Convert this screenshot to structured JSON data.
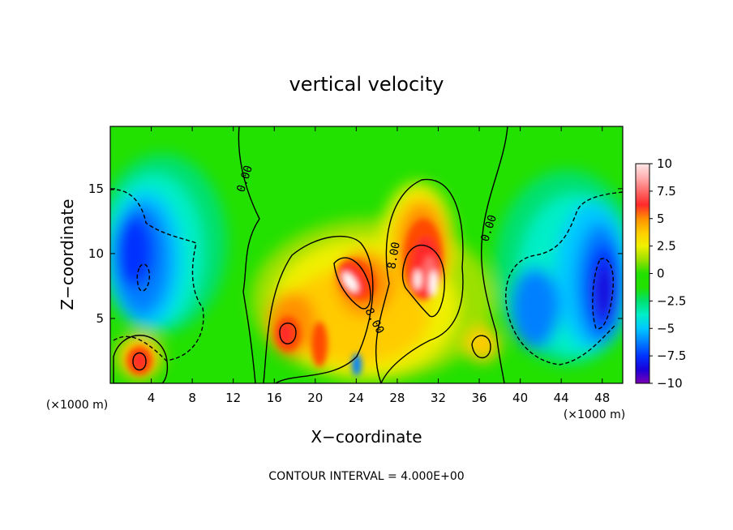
{
  "chart_data": {
    "type": "heatmap",
    "title": "vertical velocity",
    "xlabel": "X−coordinate",
    "ylabel": "Z−coordinate",
    "x_unit_label": "(×1000 m)",
    "x_ticks": [
      "4",
      "8",
      "12",
      "16",
      "20",
      "24",
      "28",
      "32",
      "36",
      "40",
      "44",
      "48"
    ],
    "y_ticks": [
      "5",
      "10",
      "15"
    ],
    "xlim": [
      0,
      50
    ],
    "ylim": [
      0,
      19.8
    ],
    "colorbar": {
      "ticks": [
        "10",
        "7.5",
        "5",
        "2.5",
        "0",
        "−2.5",
        "−5",
        "−7.5",
        "−10"
      ],
      "range": [
        -10,
        10
      ],
      "colors": [
        "#7a00b3",
        "#1a00d9",
        "#0033ff",
        "#0080ff",
        "#00c8ff",
        "#00eec8",
        "#00e070",
        "#22e000",
        "#9be000",
        "#f0f000",
        "#ffcc00",
        "#ff9000",
        "#ff4a00",
        "#ff2a2a",
        "#ff6a6a",
        "#ffb0b0",
        "#ffe8e8"
      ]
    },
    "contour_interval": "CONTOUR INTERVAL = 4.000E+00",
    "contour_labels": [
      "0.00",
      "0.00",
      "8.00",
      "8.00"
    ],
    "features": [
      {
        "kind": "updraft",
        "x": 29.5,
        "z": 8.5,
        "peak": 10
      },
      {
        "kind": "updraft",
        "x": 24.5,
        "z": 8.0,
        "peak": 10
      },
      {
        "kind": "updraft",
        "x": 17.5,
        "z": 4.0,
        "peak": 7
      },
      {
        "kind": "updraft",
        "x": 3.0,
        "z": 1.8,
        "peak": 7
      },
      {
        "kind": "updraft",
        "x": 36.0,
        "z": 3.0,
        "peak": 5
      },
      {
        "kind": "downdraft",
        "x": 4.5,
        "z": 9.5,
        "peak": -6
      },
      {
        "kind": "downdraft",
        "x": 47.0,
        "z": 8.5,
        "peak": -8
      },
      {
        "kind": "downdraft",
        "x": 42.0,
        "z": 6.5,
        "peak": -6
      },
      {
        "kind": "downdraft",
        "x": 24.0,
        "z": 1.5,
        "peak": -5
      }
    ]
  }
}
